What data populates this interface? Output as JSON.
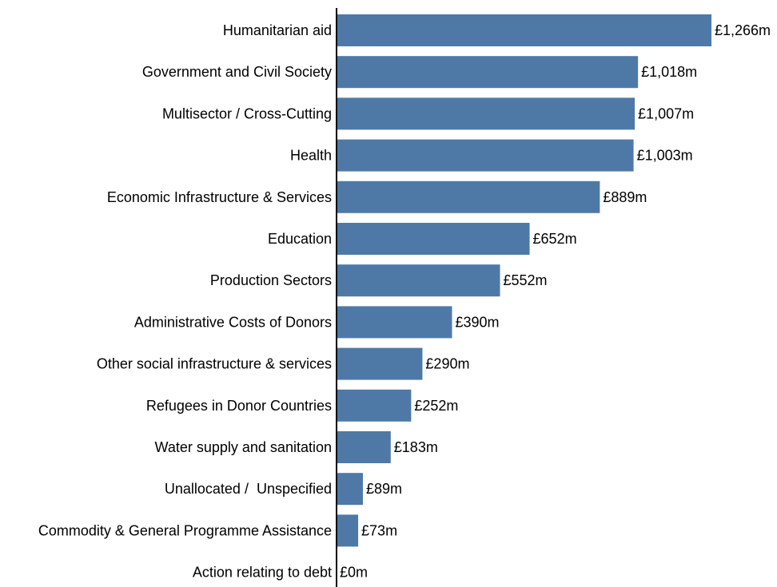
{
  "chart_data": {
    "type": "bar",
    "orientation": "horizontal",
    "categories": [
      "Humanitarian aid",
      "Government and Civil Society",
      "Multisector / Cross-Cutting",
      "Health",
      "Economic Infrastructure & Services",
      "Education",
      "Production Sectors",
      "Administrative Costs of Donors",
      "Other social infrastructure & services",
      "Refugees in Donor Countries",
      "Water supply and sanitation",
      "Unallocated /  Unspecified",
      "Commodity & General Programme Assistance",
      "Action relating to debt"
    ],
    "values": [
      1266,
      1018,
      1007,
      1003,
      889,
      652,
      552,
      390,
      290,
      252,
      183,
      89,
      73,
      0
    ],
    "value_labels": [
      "£1,266m",
      "£1,018m",
      "£1,007m",
      "£1,003m",
      "£889m",
      "£652m",
      "£552m",
      "£390m",
      "£290m",
      "£252m",
      "£183m",
      "£89m",
      "£73m",
      "£0m"
    ],
    "bar_color": "#4e79a7",
    "xlim": [
      0,
      1266
    ],
    "grid": false,
    "legend": "none"
  }
}
